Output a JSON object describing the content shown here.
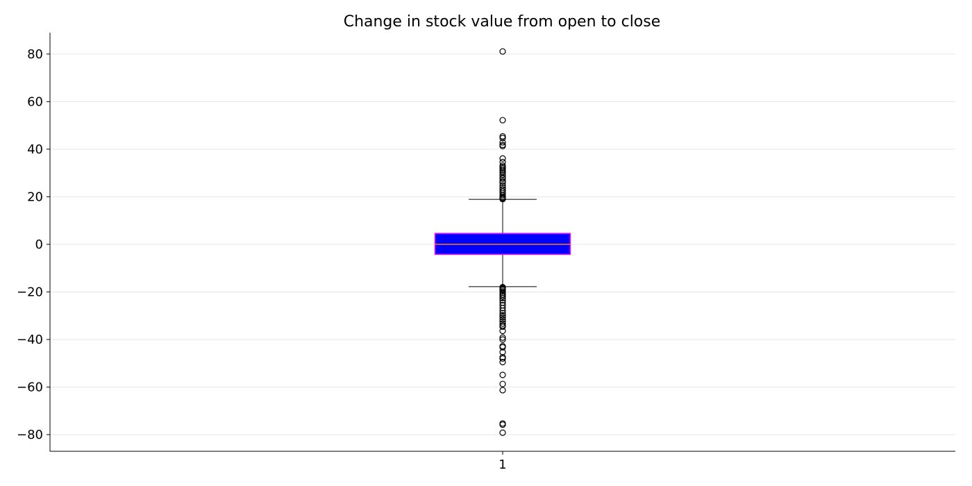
{
  "chart_data": {
    "type": "box",
    "title": "Change in stock value from open to close",
    "xlabel": "",
    "ylabel": "",
    "ylim": [
      -87,
      89
    ],
    "yticks": [
      -80,
      -60,
      -40,
      -20,
      0,
      20,
      40,
      60,
      80
    ],
    "categories": [
      "1"
    ],
    "grid": "horizontal",
    "box": {
      "q1": -4.2,
      "median": 0.0,
      "q3": 4.6,
      "whisker_low": -17.8,
      "whisker_high": 18.9,
      "fill_color": "#0000ff",
      "edge_color": "#ff00ff",
      "median_color": "#ff7f0e"
    },
    "outliers": [
      81.1,
      52.2,
      45.4,
      44.7,
      42.9,
      41.8,
      41.3,
      36.1,
      34.6,
      33.1,
      32.5,
      32.0,
      31.4,
      30.8,
      30.1,
      29.2,
      28.3,
      27.6,
      26.6,
      25.9,
      24.8,
      23.9,
      23.1,
      22.3,
      21.6,
      20.7,
      20.0,
      19.6,
      19.2,
      19.0,
      -18.0,
      -18.3,
      -18.7,
      -19.2,
      -19.8,
      -20.4,
      -21.1,
      -21.8,
      -22.6,
      -23.5,
      -24.5,
      -25.6,
      -26.8,
      -27.9,
      -28.9,
      -29.8,
      -30.6,
      -31.5,
      -32.4,
      -33.3,
      -34.1,
      -34.6,
      -36.4,
      -39.2,
      -40.0,
      -42.8,
      -43.3,
      -45.3,
      -47.4,
      -48.0,
      -49.5,
      -54.9,
      -58.7,
      -61.3,
      -75.3,
      -75.8,
      -79.2
    ]
  }
}
